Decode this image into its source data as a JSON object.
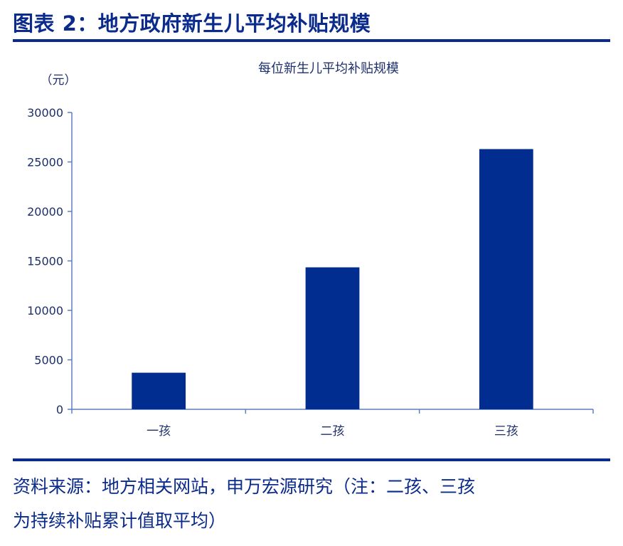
{
  "figure_title": "图表 2：地方政府新生儿平均补贴规模",
  "source_line1": "资料来源：地方相关网站，申万宏源研究（注：二孩、三孩",
  "source_line2": "为持续补贴累计值取平均）",
  "colors": {
    "bar": "#002d8f",
    "axis": "#5b7fc0",
    "text": "#1d2f6b",
    "brand": "#0b2b8c"
  },
  "chart_data": {
    "type": "bar",
    "title": "每位新生儿平均补贴规模",
    "ylabel": "（元）",
    "xlabel": "",
    "categories": [
      "一孩",
      "二孩",
      "三孩"
    ],
    "values": [
      3700,
      14350,
      26300
    ],
    "ylim": [
      0,
      30000
    ],
    "yticks": [
      0,
      5000,
      10000,
      15000,
      20000,
      25000,
      30000
    ],
    "grid": false,
    "legend": "none"
  }
}
